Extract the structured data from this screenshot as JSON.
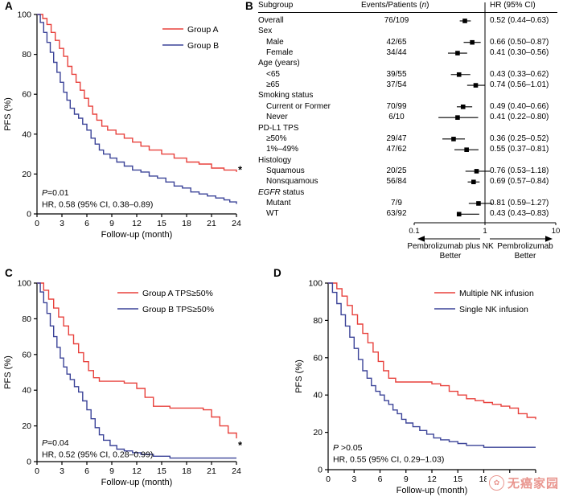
{
  "figure": {
    "panels": [
      {
        "letter": "A"
      },
      {
        "letter": "B"
      },
      {
        "letter": "C"
      },
      {
        "letter": "D"
      }
    ],
    "watermark": {
      "text": "无癌家园",
      "color": "#e9968f",
      "logo": "flower-logo"
    }
  },
  "colors": {
    "series_red": "#e8413c",
    "series_blue": "#3b4398",
    "axis": "#000000"
  },
  "chart_data": [
    {
      "panel": "A",
      "type": "line",
      "subtype": "kaplan-meier-step",
      "xlabel": "Follow-up (month)",
      "ylabel": "PFS (%)",
      "xlim": [
        0,
        24
      ],
      "ylim": [
        0,
        100
      ],
      "xticks": [
        0,
        3,
        6,
        9,
        12,
        15,
        18,
        21,
        24
      ],
      "yticks": [
        0,
        20,
        40,
        60,
        80,
        100
      ],
      "grid": false,
      "legend_position": "top-right",
      "series": [
        {
          "name": "Group A",
          "color": "#e8413c",
          "steps": [
            [
              0,
              100
            ],
            [
              0.7,
              98
            ],
            [
              1.2,
              95
            ],
            [
              1.7,
              91
            ],
            [
              2.2,
              87
            ],
            [
              2.7,
              83
            ],
            [
              3.2,
              79
            ],
            [
              3.7,
              74
            ],
            [
              4.2,
              70
            ],
            [
              4.7,
              66
            ],
            [
              5.2,
              62
            ],
            [
              5.7,
              58
            ],
            [
              6.2,
              54
            ],
            [
              6.7,
              50
            ],
            [
              7.2,
              47
            ],
            [
              7.8,
              44
            ],
            [
              8.5,
              42
            ],
            [
              9.5,
              40
            ],
            [
              10.5,
              38
            ],
            [
              11.5,
              36
            ],
            [
              12.5,
              34
            ],
            [
              13.5,
              32
            ],
            [
              15,
              30
            ],
            [
              16.5,
              28
            ],
            [
              18,
              26
            ],
            [
              19.5,
              25
            ],
            [
              21,
              23
            ],
            [
              22.5,
              22
            ],
            [
              24,
              21
            ]
          ]
        },
        {
          "name": "Group B",
          "color": "#3b4398",
          "steps": [
            [
              0,
              100
            ],
            [
              0.4,
              96
            ],
            [
              0.8,
              91
            ],
            [
              1.2,
              86
            ],
            [
              1.6,
              81
            ],
            [
              2,
              76
            ],
            [
              2.4,
              71
            ],
            [
              2.8,
              66
            ],
            [
              3.2,
              61
            ],
            [
              3.6,
              57
            ],
            [
              4,
              53
            ],
            [
              4.5,
              50
            ],
            [
              5,
              48
            ],
            [
              5.5,
              45
            ],
            [
              6,
              42
            ],
            [
              6.5,
              38
            ],
            [
              7,
              35
            ],
            [
              7.5,
              32
            ],
            [
              8,
              30
            ],
            [
              8.8,
              28
            ],
            [
              9.6,
              26
            ],
            [
              10.5,
              24
            ],
            [
              11.5,
              22
            ],
            [
              12.5,
              21
            ],
            [
              13.5,
              19
            ],
            [
              14.5,
              18
            ],
            [
              15.5,
              16
            ],
            [
              16.5,
              14
            ],
            [
              17.5,
              13
            ],
            [
              18.5,
              11
            ],
            [
              19.5,
              10
            ],
            [
              20.5,
              9
            ],
            [
              21.5,
              8
            ],
            [
              22.5,
              7
            ],
            [
              23.2,
              6
            ],
            [
              24,
              5
            ]
          ]
        }
      ],
      "stats": [
        {
          "italic": "P",
          "text": "=0.01"
        },
        {
          "italic": "",
          "text": "HR, 0.58 (95% CI, 0.38–0.89)"
        }
      ],
      "annotations": [
        {
          "text": "*",
          "x": 24,
          "y": 22
        }
      ]
    },
    {
      "panel": "B",
      "type": "forest",
      "headers": {
        "subgroup": "Subgroup",
        "events_prefix": "Events/Patients (",
        "events_italic": "n",
        "events_suffix": ")",
        "hr": "HR (95% CI)"
      },
      "axis": {
        "scale": "log",
        "min": 0.1,
        "max": 10,
        "ticks": [
          0.1,
          1,
          10
        ],
        "tick_labels": [
          "0.1",
          "1",
          "10"
        ],
        "ref_line": 1
      },
      "rows": [
        {
          "label": "Overall",
          "indent": 0,
          "events": "76/109",
          "hr": 0.52,
          "ci": [
            0.44,
            0.63
          ],
          "hr_text": "0.52 (0.44–0.63)"
        },
        {
          "label": "Sex",
          "indent": 0,
          "header": true
        },
        {
          "label": "Male",
          "indent": 1,
          "events": "42/65",
          "hr": 0.66,
          "ci": [
            0.5,
            0.87
          ],
          "hr_text": "0.66 (0.50–0.87)"
        },
        {
          "label": "Female",
          "indent": 1,
          "events": "34/44",
          "hr": 0.41,
          "ci": [
            0.3,
            0.56
          ],
          "hr_text": "0.41 (0.30–0.56)"
        },
        {
          "label": "Age (years)",
          "indent": 0,
          "header": true
        },
        {
          "label": "<65",
          "indent": 1,
          "events": "39/55",
          "hr": 0.43,
          "ci": [
            0.33,
            0.62
          ],
          "hr_text": "0.43 (0.33–0.62)"
        },
        {
          "label": "≥65",
          "indent": 1,
          "events": "37/54",
          "hr": 0.74,
          "ci": [
            0.56,
            1.01
          ],
          "hr_text": "0.74 (0.56–1.01)"
        },
        {
          "label": "Smoking status",
          "indent": 0,
          "header": true
        },
        {
          "label": "Current or Former",
          "indent": 1,
          "events": "70/99",
          "hr": 0.49,
          "ci": [
            0.4,
            0.66
          ],
          "hr_text": "0.49 (0.40–0.66)"
        },
        {
          "label": "Never",
          "indent": 1,
          "events": "6/10",
          "hr": 0.41,
          "ci": [
            0.22,
            0.8
          ],
          "hr_text": "0.41 (0.22–0.80)"
        },
        {
          "label": "PD-L1 TPS",
          "indent": 0,
          "header": true
        },
        {
          "label": "≥50%",
          "indent": 1,
          "events": "29/47",
          "hr": 0.36,
          "ci": [
            0.25,
            0.52
          ],
          "hr_text": "0.36 (0.25–0.52)"
        },
        {
          "label": "1%–49%",
          "indent": 1,
          "events": "47/62",
          "hr": 0.55,
          "ci": [
            0.37,
            0.81
          ],
          "hr_text": "0.55 (0.37–0.81)"
        },
        {
          "label": "Histology",
          "indent": 0,
          "header": true
        },
        {
          "label": "Squamous",
          "indent": 1,
          "events": "20/25",
          "hr": 0.76,
          "ci": [
            0.53,
            1.18
          ],
          "hr_text": "0.76 (0.53–1.18)"
        },
        {
          "label": "Nonsquamous",
          "indent": 1,
          "events": "56/84",
          "hr": 0.69,
          "ci": [
            0.57,
            0.84
          ],
          "hr_text": "0.69 (0.57–0.84)"
        },
        {
          "label": " status",
          "label_italic": "EGFR",
          "indent": 0,
          "header": true
        },
        {
          "label": "Mutant",
          "indent": 1,
          "events": "7/9",
          "hr": 0.81,
          "ci": [
            0.59,
            1.27
          ],
          "hr_text": "0.81 (0.59–1.27)"
        },
        {
          "label": "WT",
          "indent": 1,
          "events": "63/92",
          "hr": 0.43,
          "ci": [
            0.43,
            0.83
          ],
          "hr_text": "0.43 (0.43–0.83)"
        }
      ],
      "arrows": {
        "left": {
          "label_line1": "Pembrolizumab plus NK",
          "label_line2": "Better"
        },
        "right": {
          "label_line1": "Pembrolizumab",
          "label_line2": "Better"
        }
      }
    },
    {
      "panel": "C",
      "type": "line",
      "subtype": "kaplan-meier-step",
      "xlabel": "Follow-up (month)",
      "ylabel": "PFS (%)",
      "xlim": [
        0,
        24
      ],
      "ylim": [
        0,
        100
      ],
      "xticks": [
        0,
        3,
        6,
        9,
        12,
        15,
        18,
        21,
        24
      ],
      "yticks": [
        0,
        20,
        40,
        60,
        80,
        100
      ],
      "grid": false,
      "legend_position": "top-right",
      "series": [
        {
          "name": "Group A TPS≥50%",
          "color": "#e8413c",
          "steps": [
            [
              0,
              100
            ],
            [
              0.8,
              96
            ],
            [
              1.4,
              91
            ],
            [
              2,
              86
            ],
            [
              2.6,
              81
            ],
            [
              3.2,
              76
            ],
            [
              3.8,
              71
            ],
            [
              4.4,
              66
            ],
            [
              5,
              61
            ],
            [
              5.6,
              56
            ],
            [
              6.2,
              51
            ],
            [
              6.8,
              47
            ],
            [
              7.5,
              45
            ],
            [
              9,
              45
            ],
            [
              10.5,
              44
            ],
            [
              12,
              41
            ],
            [
              13,
              36
            ],
            [
              14,
              31
            ],
            [
              16,
              30
            ],
            [
              18,
              30
            ],
            [
              20,
              29
            ],
            [
              21,
              25
            ],
            [
              22,
              20
            ],
            [
              23,
              16
            ],
            [
              24,
              13
            ]
          ]
        },
        {
          "name": "Group B TPS≥50%",
          "color": "#3b4398",
          "steps": [
            [
              0,
              100
            ],
            [
              0.4,
              95
            ],
            [
              0.8,
              89
            ],
            [
              1.2,
              83
            ],
            [
              1.6,
              76
            ],
            [
              2,
              70
            ],
            [
              2.4,
              64
            ],
            [
              2.8,
              58
            ],
            [
              3.2,
              53
            ],
            [
              3.6,
              49
            ],
            [
              4,
              46
            ],
            [
              4.5,
              42
            ],
            [
              5,
              39
            ],
            [
              5.5,
              34
            ],
            [
              6,
              29
            ],
            [
              6.5,
              24
            ],
            [
              7,
              19
            ],
            [
              7.5,
              15
            ],
            [
              8,
              12
            ],
            [
              8.8,
              9
            ],
            [
              9.6,
              7
            ],
            [
              10.5,
              6
            ],
            [
              11.5,
              5
            ],
            [
              12.5,
              4
            ],
            [
              14,
              3
            ],
            [
              16,
              2
            ],
            [
              18,
              2
            ],
            [
              24,
              2
            ]
          ]
        }
      ],
      "stats": [
        {
          "italic": "P",
          "text": "=0.04"
        },
        {
          "italic": "",
          "text": "HR, 0.52 (95% CI, 0.28–0.99)"
        }
      ],
      "annotations": [
        {
          "text": "*",
          "x": 24,
          "y": 9
        }
      ]
    },
    {
      "panel": "D",
      "type": "line",
      "subtype": "kaplan-meier-step",
      "xlabel": "Follow-up (month)",
      "ylabel": "PFS (%)",
      "xlim": [
        0,
        24
      ],
      "ylim": [
        0,
        100
      ],
      "xticks": [
        0,
        3,
        6,
        9,
        12,
        15,
        18,
        21,
        24
      ],
      "yticks": [
        0,
        20,
        40,
        60,
        80,
        100
      ],
      "grid": false,
      "legend_position": "top-right",
      "series": [
        {
          "name": "Multiple NK infusion",
          "color": "#e8413c",
          "steps": [
            [
              0,
              100
            ],
            [
              1,
              97
            ],
            [
              1.6,
              93
            ],
            [
              2.2,
              88
            ],
            [
              2.8,
              83
            ],
            [
              3.4,
              78
            ],
            [
              4,
              73
            ],
            [
              4.6,
              68
            ],
            [
              5.2,
              63
            ],
            [
              5.8,
              58
            ],
            [
              6.4,
              53
            ],
            [
              7,
              49
            ],
            [
              7.8,
              47
            ],
            [
              9,
              47
            ],
            [
              10.5,
              47
            ],
            [
              12,
              46
            ],
            [
              13,
              45
            ],
            [
              14,
              42
            ],
            [
              15,
              40
            ],
            [
              16,
              38
            ],
            [
              17,
              37
            ],
            [
              18,
              36
            ],
            [
              19,
              35
            ],
            [
              20,
              34
            ],
            [
              21,
              33
            ],
            [
              22,
              30
            ],
            [
              23,
              28
            ],
            [
              24,
              27
            ]
          ]
        },
        {
          "name": "Single NK infusion",
          "color": "#3b4398",
          "steps": [
            [
              0,
              100
            ],
            [
              0.5,
              95
            ],
            [
              1,
              89
            ],
            [
              1.5,
              83
            ],
            [
              2,
              77
            ],
            [
              2.5,
              71
            ],
            [
              3,
              65
            ],
            [
              3.5,
              59
            ],
            [
              4,
              53
            ],
            [
              4.5,
              49
            ],
            [
              5,
              45
            ],
            [
              5.5,
              42
            ],
            [
              6,
              40
            ],
            [
              6.5,
              37
            ],
            [
              7,
              35
            ],
            [
              7.5,
              32
            ],
            [
              8,
              30
            ],
            [
              8.5,
              27
            ],
            [
              9,
              25
            ],
            [
              9.8,
              23
            ],
            [
              10.6,
              21
            ],
            [
              11.4,
              19
            ],
            [
              12.2,
              17
            ],
            [
              13,
              16
            ],
            [
              14,
              15
            ],
            [
              15,
              14
            ],
            [
              16,
              13
            ],
            [
              17,
              13
            ],
            [
              18,
              12
            ],
            [
              24,
              12
            ]
          ]
        }
      ],
      "stats": [
        {
          "italic": "P",
          "text": " >0.05"
        },
        {
          "italic": "",
          "text": "HR, 0.55 (95% CI, 0.29–1.03)"
        }
      ],
      "annotations": []
    }
  ]
}
